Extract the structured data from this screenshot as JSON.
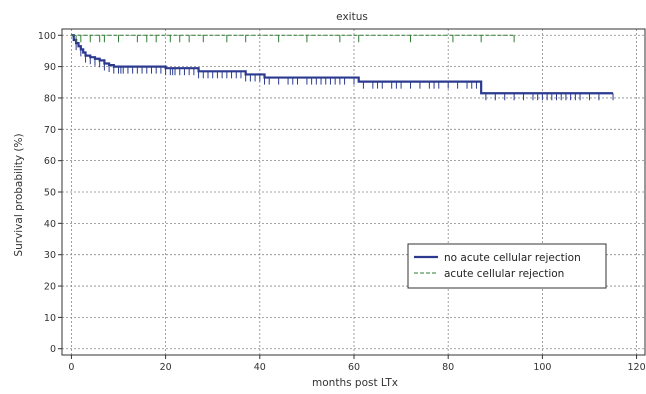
{
  "chart_data": {
    "type": "line",
    "subtype": "kaplan-meier",
    "title": "exitus",
    "xlabel": "months post LTx",
    "ylabel": "Survival probability (%)",
    "xlim": [
      -2,
      122
    ],
    "ylim": [
      -2,
      102
    ],
    "x_ticks": [
      0,
      20,
      40,
      60,
      80,
      100,
      120
    ],
    "y_ticks": [
      0,
      10,
      20,
      30,
      40,
      50,
      60,
      70,
      80,
      90,
      100
    ],
    "grid": true,
    "legend_position": "lower-right",
    "series": [
      {
        "name": "no acute cellular rejection",
        "color": "#2b3a8f",
        "style": "solid",
        "steps": [
          [
            0,
            100
          ],
          [
            0.5,
            98.5
          ],
          [
            1,
            97.5
          ],
          [
            1.5,
            96.5
          ],
          [
            2,
            95.5
          ],
          [
            2.5,
            94.5
          ],
          [
            3,
            93.5
          ],
          [
            4,
            93
          ],
          [
            5,
            92.5
          ],
          [
            6,
            92
          ],
          [
            7,
            91
          ],
          [
            8,
            90.5
          ],
          [
            9,
            90
          ],
          [
            20,
            89.5
          ],
          [
            27,
            88.5
          ],
          [
            37,
            87.5
          ],
          [
            41,
            86.5
          ],
          [
            61,
            85.2
          ],
          [
            87,
            81.5
          ],
          [
            115,
            81.5
          ]
        ],
        "censored": [
          1,
          2,
          3,
          4,
          5,
          6,
          7,
          8,
          9,
          10,
          10.5,
          11,
          12,
          13,
          14,
          15,
          16,
          17,
          18,
          19,
          20,
          21,
          21.5,
          22,
          23,
          24,
          25,
          26,
          27,
          28,
          29,
          30,
          31,
          32,
          33,
          34,
          35,
          36,
          37,
          38,
          39,
          40,
          41,
          42,
          44,
          46,
          47,
          48,
          50,
          51,
          52,
          53,
          54,
          55,
          56,
          57,
          58,
          60,
          62,
          64,
          65,
          66,
          68,
          69,
          70,
          72,
          74,
          76,
          77,
          78,
          80,
          82,
          84,
          85,
          86,
          88,
          90,
          92,
          94,
          96,
          98,
          99,
          100,
          101,
          102,
          103,
          104,
          105,
          106,
          107,
          108,
          110,
          112,
          115
        ]
      },
      {
        "name": "acute cellular rejection",
        "color": "#2e7d32",
        "style": "dashed",
        "steps": [
          [
            0,
            100
          ],
          [
            94,
            100
          ]
        ],
        "censored": [
          1,
          2,
          4,
          6,
          7,
          10,
          14,
          16,
          18,
          21,
          23,
          25,
          28,
          33,
          37,
          44,
          50,
          57,
          61,
          72,
          81,
          87,
          94
        ]
      }
    ]
  }
}
